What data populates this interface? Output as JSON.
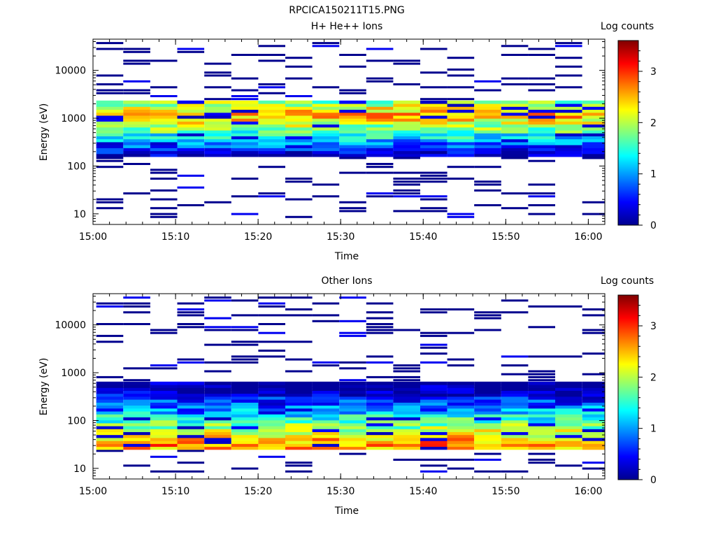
{
  "figure_title": "RPCICA150211T15.PNG",
  "chart_data": [
    {
      "type": "heatmap",
      "title": "H+ He++ Ions",
      "xlabel": "Time",
      "ylabel": "Energy (eV)",
      "xticks": [
        "15:00",
        "15:10",
        "15:20",
        "15:30",
        "15:40",
        "15:50",
        "16:00"
      ],
      "xlim": [
        "15:00",
        "16:02"
      ],
      "yscale": "log",
      "yticks": [
        10,
        100,
        1000,
        10000
      ],
      "ylim": [
        6,
        45000
      ],
      "colorbar": {
        "label": "Log counts",
        "range": [
          0,
          3.6
        ],
        "ticks": [
          0,
          1,
          2,
          3
        ]
      },
      "data_summary": {
        "time_bins": 19,
        "bin_width_min": 3.27,
        "dense_band_eV": [
          150,
          2200
        ],
        "peak_log_counts": 2.6,
        "peak_energy_eV": 1100,
        "sparse_levels_eV": [
          10,
          30,
          100,
          10000,
          30000
        ]
      }
    },
    {
      "type": "heatmap",
      "title": "Other Ions",
      "xlabel": "Time",
      "ylabel": "Energy (eV)",
      "xticks": [
        "15:00",
        "15:10",
        "15:20",
        "15:30",
        "15:40",
        "15:50",
        "16:00"
      ],
      "xlim": [
        "15:00",
        "16:02"
      ],
      "yscale": "log",
      "yticks": [
        10,
        100,
        1000,
        10000
      ],
      "ylim": [
        6,
        45000
      ],
      "colorbar": {
        "label": "Log counts",
        "range": [
          0,
          3.6
        ],
        "ticks": [
          0,
          1,
          2,
          3
        ]
      },
      "data_summary": {
        "time_bins": 19,
        "bin_width_min": 3.27,
        "dense_band_eV": [
          22,
          600
        ],
        "peak_log_counts": 2.7,
        "peak_energy_eV": 30,
        "sparse_levels_eV": [
          10,
          1000,
          2500,
          13000,
          21000
        ]
      }
    }
  ]
}
